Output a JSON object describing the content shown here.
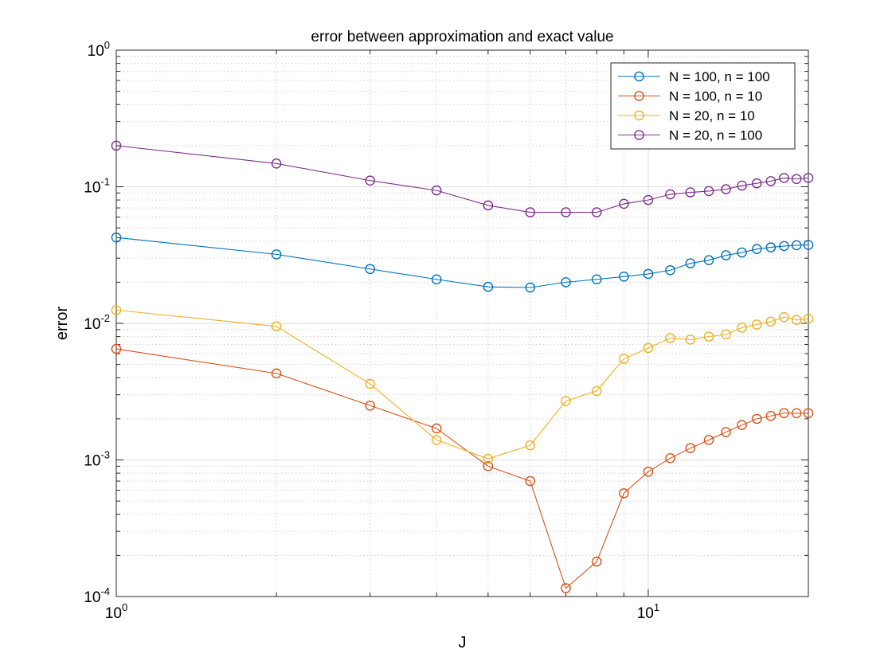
{
  "chart_data": {
    "type": "line",
    "title": "error between approximation and exact value",
    "xlabel": "J",
    "ylabel": "error",
    "xscale": "log",
    "yscale": "log",
    "xlim": [
      1,
      20
    ],
    "ylim": [
      0.0001,
      1
    ],
    "grid": "major and minor, dotted",
    "legend_position": "top-right",
    "x_ticks": [
      {
        "value": 1,
        "base": "10",
        "exp": "0"
      },
      {
        "value": 10,
        "base": "10",
        "exp": "1"
      }
    ],
    "y_ticks": [
      {
        "value": 0.0001,
        "base": "10",
        "exp": "-4"
      },
      {
        "value": 0.001,
        "base": "10",
        "exp": "-3"
      },
      {
        "value": 0.01,
        "base": "10",
        "exp": "-2"
      },
      {
        "value": 0.1,
        "base": "10",
        "exp": "-1"
      },
      {
        "value": 1,
        "base": "10",
        "exp": "0"
      }
    ],
    "x": [
      1,
      2,
      3,
      4,
      5,
      6,
      7,
      8,
      9,
      10,
      11,
      12,
      13,
      14,
      15,
      16,
      17,
      18,
      19,
      20
    ],
    "series": [
      {
        "name": "N = 100, n = 100",
        "color": "#0072BD",
        "values": [
          0.0425,
          0.032,
          0.025,
          0.021,
          0.0185,
          0.0183,
          0.02,
          0.021,
          0.022,
          0.023,
          0.0245,
          0.0275,
          0.029,
          0.0315,
          0.033,
          0.035,
          0.036,
          0.0368,
          0.0373,
          0.0375
        ]
      },
      {
        "name": "N = 100, n = 10",
        "color": "#D95319",
        "values": [
          0.0065,
          0.0043,
          0.0025,
          0.0017,
          0.0009,
          0.0007,
          0.000115,
          0.00018,
          0.00057,
          0.00082,
          0.00103,
          0.00122,
          0.0014,
          0.0016,
          0.0018,
          0.002,
          0.0021,
          0.0022,
          0.0022,
          0.0022
        ]
      },
      {
        "name": "N = 20, n = 10",
        "color": "#EDB120",
        "values": [
          0.0125,
          0.0095,
          0.0036,
          0.0014,
          0.00102,
          0.00128,
          0.0027,
          0.0032,
          0.0055,
          0.0066,
          0.0078,
          0.0076,
          0.008,
          0.0083,
          0.0093,
          0.0098,
          0.0103,
          0.0111,
          0.0106,
          0.0108
        ]
      },
      {
        "name": "N = 20, n = 100",
        "color": "#7E2F8E",
        "values": [
          0.2,
          0.148,
          0.111,
          0.094,
          0.073,
          0.065,
          0.065,
          0.065,
          0.075,
          0.08,
          0.088,
          0.091,
          0.093,
          0.096,
          0.102,
          0.106,
          0.11,
          0.116,
          0.114,
          0.116
        ]
      }
    ]
  }
}
